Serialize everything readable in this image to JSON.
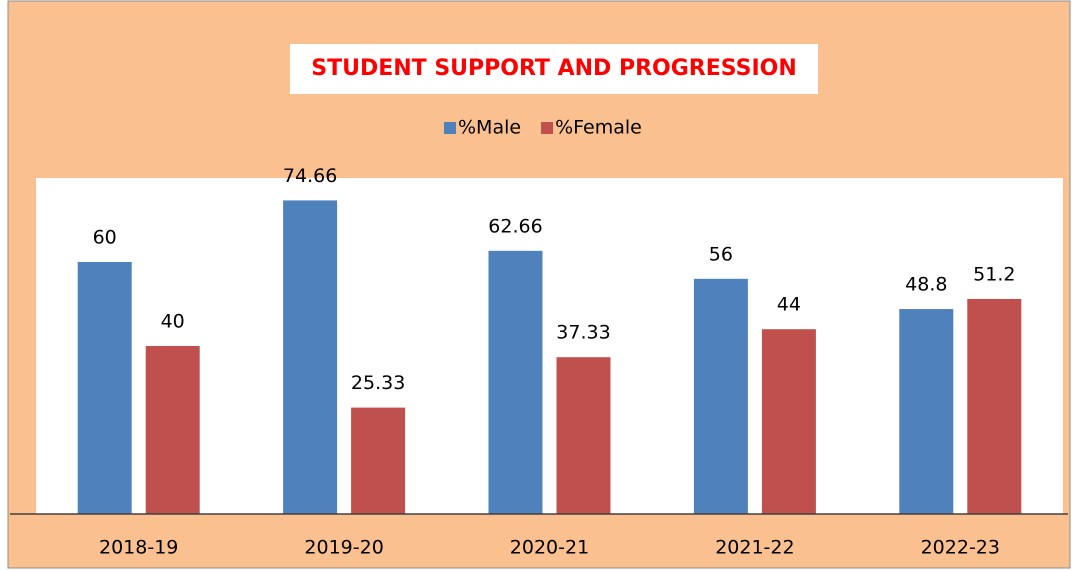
{
  "chart_data": {
    "type": "bar",
    "title": "STUDENT SUPPORT AND PROGRESSION",
    "categories": [
      "2018-19",
      "2019-20",
      "2020-21",
      "2021-22",
      "2022-23"
    ],
    "series": [
      {
        "name": "%Male",
        "color": "#4f81bd",
        "values": [
          60,
          74.66,
          62.66,
          56,
          48.8
        ]
      },
      {
        "name": "%Female",
        "color": "#c0504d",
        "values": [
          40,
          25.33,
          37.33,
          44,
          51.2
        ]
      }
    ],
    "ylim": [
      0,
      80
    ],
    "legend": "top"
  }
}
